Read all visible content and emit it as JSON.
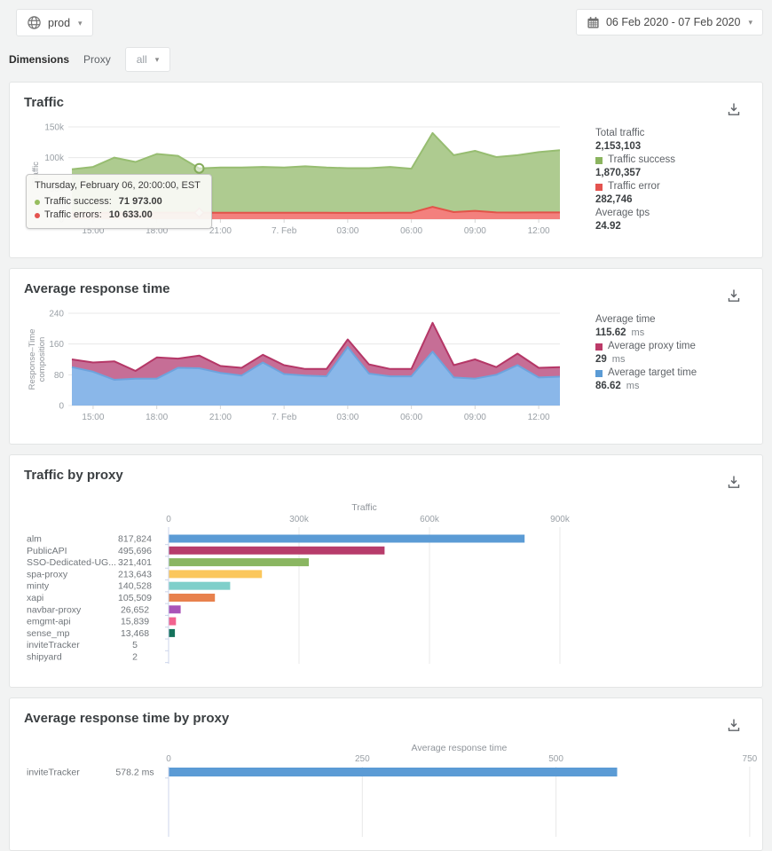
{
  "topbar": {
    "env": "prod",
    "date_range": "06 Feb 2020 - 07 Feb 2020"
  },
  "filters": {
    "dimensions_label": "Dimensions",
    "dimension": "Proxy",
    "value": "all"
  },
  "cards": {
    "traffic": {
      "title": "Traffic",
      "stats": [
        {
          "label": "Total traffic",
          "value": "2,153,103"
        },
        {
          "label": "Traffic success",
          "value": "1,870,357",
          "swatch": "#8bb45f"
        },
        {
          "label": "Traffic error",
          "value": "282,746",
          "swatch": "#e4534f"
        },
        {
          "label": "Average tps",
          "value": "24.92"
        }
      ],
      "tooltip": {
        "header": "Thursday, February 06, 20:00:00, EST",
        "rows": [
          {
            "label": "Traffic success:",
            "value": "71 973.00",
            "color": "#97bd5f"
          },
          {
            "label": "Traffic errors:",
            "value": "10 633.00",
            "color": "#e4534f"
          }
        ]
      }
    },
    "response": {
      "title": "Average response time",
      "stats": [
        {
          "label": "Average time",
          "value": "115.62",
          "unit": "ms"
        },
        {
          "label": "Average proxy time",
          "value": "29",
          "unit": "ms",
          "swatch": "#bc3a68"
        },
        {
          "label": "Average target time",
          "value": "86.62",
          "unit": "ms",
          "swatch": "#5b9bd5"
        }
      ]
    },
    "traffic_by_proxy": {
      "title": "Traffic by proxy"
    },
    "response_by_proxy": {
      "title": "Average response time by proxy"
    }
  },
  "chart_data": [
    {
      "id": "traffic-trend",
      "type": "area",
      "stacked": true,
      "title": "Traffic",
      "ylabel": "Traffic",
      "ylim": [
        0,
        150000
      ],
      "y_ticks": [
        {
          "v": 0,
          "label": "0"
        },
        {
          "v": 50000,
          "label": "50k"
        },
        {
          "v": 100000,
          "label": "100k"
        },
        {
          "v": 150000,
          "label": "150k"
        }
      ],
      "x": [
        "14:00",
        "15:00",
        "16:00",
        "17:00",
        "18:00",
        "19:00",
        "20:00",
        "21:00",
        "22:00",
        "23:00",
        "00:00",
        "01:00",
        "02:00",
        "03:00",
        "04:00",
        "05:00",
        "06:00",
        "07:00",
        "08:00",
        "09:00",
        "10:00",
        "11:00",
        "12:00",
        "13:00"
      ],
      "x_tick_labels": [
        "15:00",
        "18:00",
        "21:00",
        "7. Feb",
        "03:00",
        "06:00",
        "09:00",
        "12:00"
      ],
      "x_tick_indices": [
        1,
        4,
        7,
        10,
        13,
        16,
        19,
        22
      ],
      "series_order": "bottom-to-top",
      "series": [
        {
          "name": "Traffic errors",
          "fill": "#f3807d",
          "line": "#e25349",
          "values": [
            10500,
            10500,
            10600,
            10500,
            10800,
            10700,
            10633,
            10400,
            10400,
            10500,
            10400,
            10500,
            10400,
            10300,
            10300,
            10400,
            10500,
            20000,
            11500,
            13500,
            11000,
            10800,
            11000,
            11000
          ]
        },
        {
          "name": "Traffic success",
          "fill": "#aecb90",
          "line": "#97bd71",
          "values": [
            70500,
            74500,
            89500,
            82500,
            95200,
            92300,
            71973,
            73600,
            73600,
            74500,
            73600,
            75500,
            73600,
            72700,
            72700,
            74500,
            71500,
            120000,
            92500,
            97500,
            90000,
            93200,
            98000,
            101000
          ]
        }
      ],
      "marker_index": 6,
      "grid": true
    },
    {
      "id": "response-trend",
      "type": "area",
      "stacked": true,
      "title": "Average response time",
      "ylabel": "Response–Time\ncomposition",
      "ylim": [
        0,
        240
      ],
      "y_ticks": [
        {
          "v": 0,
          "label": "0"
        },
        {
          "v": 80,
          "label": "80"
        },
        {
          "v": 160,
          "label": "160"
        },
        {
          "v": 240,
          "label": "240"
        }
      ],
      "x": [
        "14:00",
        "15:00",
        "16:00",
        "17:00",
        "18:00",
        "19:00",
        "20:00",
        "21:00",
        "22:00",
        "23:00",
        "00:00",
        "01:00",
        "02:00",
        "03:00",
        "04:00",
        "05:00",
        "06:00",
        "07:00",
        "08:00",
        "09:00",
        "10:00",
        "11:00",
        "12:00",
        "13:00"
      ],
      "x_tick_labels": [
        "15:00",
        "18:00",
        "21:00",
        "7. Feb",
        "03:00",
        "06:00",
        "09:00",
        "12:00"
      ],
      "x_tick_indices": [
        1,
        4,
        7,
        10,
        13,
        16,
        19,
        22
      ],
      "series_order": "bottom-to-top",
      "series": [
        {
          "name": "Average target time",
          "fill": "#8ab7e9",
          "line": "#6da3dd",
          "values": [
            100,
            88,
            67,
            70,
            70,
            98,
            97,
            85,
            78,
            112,
            82,
            78,
            76,
            152,
            83,
            76,
            76,
            140,
            73,
            70,
            80,
            105,
            73,
            75
          ]
        },
        {
          "name": "Average proxy time",
          "fill": "#c66e96",
          "line": "#b53767",
          "values": [
            20,
            24,
            48,
            20,
            55,
            24,
            33,
            18,
            20,
            20,
            23,
            17,
            19,
            20,
            24,
            19,
            19,
            75,
            32,
            50,
            20,
            30,
            25,
            25
          ]
        }
      ],
      "grid": true
    },
    {
      "id": "traffic-by-proxy",
      "type": "bar",
      "orientation": "horizontal",
      "xlabel": "Traffic",
      "xlim": [
        0,
        900000
      ],
      "x_ticks": [
        {
          "v": 0,
          "label": "0"
        },
        {
          "v": 300000,
          "label": "300k"
        },
        {
          "v": 600000,
          "label": "600k"
        },
        {
          "v": 900000,
          "label": "900k"
        }
      ],
      "categories": [
        "alm",
        "PublicAPI",
        "SSO-Dedicated-UG...",
        "spa-proxy",
        "minty",
        "xapi",
        "navbar-proxy",
        "emgmt-api",
        "sense_mp",
        "inviteTracker",
        "shipyard"
      ],
      "values": [
        817824,
        495696,
        321401,
        213643,
        140528,
        105509,
        26652,
        15839,
        13468,
        5,
        2
      ],
      "value_labels": [
        "817,824",
        "495,696",
        "321,401",
        "213,643",
        "140,528",
        "105,509",
        "26,652",
        "15,839",
        "13,468",
        "5",
        "2"
      ],
      "bar_colors": [
        "#5b9bd5",
        "#b73c6b",
        "#8ab661",
        "#fbc75c",
        "#7fcfca",
        "#e8814d",
        "#a953b8",
        "#f2638f",
        "#15735c",
        "#5b9bd5",
        "#5b9bd5"
      ],
      "grid": true
    },
    {
      "id": "response-time-by-proxy",
      "type": "bar",
      "orientation": "horizontal",
      "xlabel": "Average response time",
      "xlim": [
        0,
        750
      ],
      "x_ticks": [
        {
          "v": 0,
          "label": "0"
        },
        {
          "v": 250,
          "label": "250"
        },
        {
          "v": 500,
          "label": "500"
        },
        {
          "v": 750,
          "label": "750"
        }
      ],
      "categories": [
        "inviteTracker"
      ],
      "values": [
        578.2
      ],
      "value_labels": [
        "578.2 ms"
      ],
      "bar_colors": [
        "#5b9bd5"
      ],
      "grid": true
    }
  ]
}
